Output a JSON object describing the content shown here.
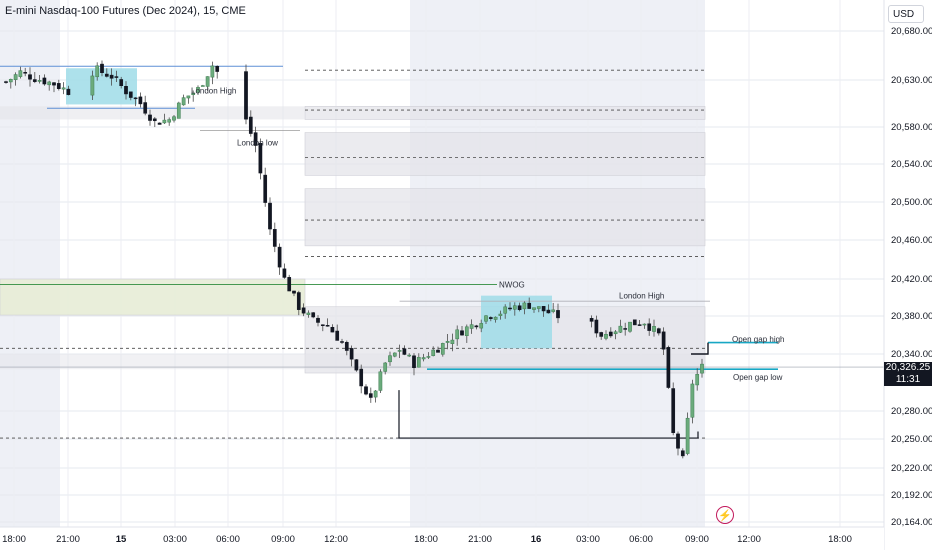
{
  "header": {
    "title": "E-mini Nasdaq-100 Futures (Dec 2024), 15, CME",
    "currency": "USD"
  },
  "last_price": {
    "value": "20,326.25",
    "countdown": "11:31"
  },
  "colors": {
    "up": "#6bab7c",
    "down": "#131722",
    "wick": "#4a4a4a",
    "cyan_box": "#9fdce8",
    "zone_gray": "#e4e4ea",
    "zone_border": "#cfcfd6",
    "nwog": "#e7ecd6",
    "cyan_line": "#18a7c4",
    "blue_line": "#5e8fd6",
    "green_line": "#2e8b3d",
    "alert": "#c2185b"
  },
  "icons": {
    "alert": "lightning-bolt-icon"
  },
  "chart_data": {
    "type": "candlestick",
    "title": "E-mini Nasdaq-100 Futures (Dec 2024), 15, CME",
    "ylim": [
      20160,
      20710
    ],
    "y_ticks": [
      "20,680.00",
      "20,630.00",
      "20,580.00",
      "20,540.00",
      "20,500.00",
      "20,460.00",
      "20,420.00",
      "20,380.00",
      "20,340.00",
      "20,280.00",
      "20,250.00",
      "20,220.00",
      "20,192.00",
      "20,164.00"
    ],
    "x_ticks": [
      "18:00",
      "21:00",
      "15",
      "03:00",
      "06:00",
      "09:00",
      "12:00",
      "18:00",
      "21:00",
      "16",
      "03:00",
      "06:00",
      "09:00",
      "12:00",
      "18:00"
    ],
    "anchors": [
      [
        0,
        20628
      ],
      [
        3,
        20638
      ],
      [
        6,
        20632
      ],
      [
        10,
        20626
      ],
      [
        13,
        20618
      ],
      [
        16,
        20636
      ],
      [
        19,
        20640
      ],
      [
        22,
        20634
      ],
      [
        25,
        20618
      ],
      [
        28,
        20605
      ],
      [
        31,
        20585
      ],
      [
        34,
        20588
      ],
      [
        37,
        20610
      ],
      [
        40,
        20620
      ],
      [
        43,
        20645
      ],
      [
        46,
        20625
      ],
      [
        49,
        20600
      ],
      [
        52,
        20560
      ],
      [
        55,
        20470
      ],
      [
        58,
        20420
      ],
      [
        61,
        20390
      ],
      [
        64,
        20375
      ],
      [
        67,
        20370
      ],
      [
        70,
        20352
      ],
      [
        73,
        20320
      ],
      [
        76,
        20290
      ],
      [
        79,
        20330
      ],
      [
        82,
        20345
      ],
      [
        85,
        20330
      ],
      [
        88,
        20340
      ],
      [
        91,
        20350
      ],
      [
        94,
        20362
      ],
      [
        97,
        20370
      ],
      [
        100,
        20380
      ],
      [
        103,
        20384
      ],
      [
        106,
        20390
      ],
      [
        109,
        20392
      ],
      [
        112,
        20386
      ],
      [
        115,
        20380
      ],
      [
        118,
        20370
      ],
      [
        121,
        20376
      ],
      [
        124,
        20360
      ],
      [
        127,
        20366
      ],
      [
        130,
        20372
      ],
      [
        133,
        20374
      ],
      [
        136,
        20360
      ],
      [
        137,
        20345
      ],
      [
        139,
        20255
      ],
      [
        141,
        20228
      ],
      [
        143,
        20310
      ],
      [
        145,
        20326
      ]
    ],
    "gaps": [
      [
        14,
        4
      ],
      [
        45,
        5
      ],
      [
        116,
        6
      ]
    ],
    "annotations": [
      {
        "label": "London High",
        "price": 20619,
        "session": "day-1"
      },
      {
        "label": "London low",
        "price": 20576,
        "session": "day-1"
      },
      {
        "label": "NWOG",
        "price": 20414
      },
      {
        "label": "London High",
        "price": 20396,
        "session": "day-2"
      },
      {
        "label": "Open gap high",
        "price": 20352
      },
      {
        "label": "Open gap low",
        "price": 20324
      }
    ],
    "reference_levels": [
      20598,
      20547,
      20481,
      20443,
      20346,
      20251,
      20640
    ],
    "zones": [
      {
        "from": 20588,
        "to": 20602
      },
      {
        "from": 20528,
        "to": 20574
      },
      {
        "from": 20454,
        "to": 20514
      },
      {
        "from": 20320,
        "to": 20390
      },
      {
        "from": 20381,
        "to": 20420,
        "kind": "nwog"
      }
    ],
    "grid": true,
    "legend": "none"
  }
}
